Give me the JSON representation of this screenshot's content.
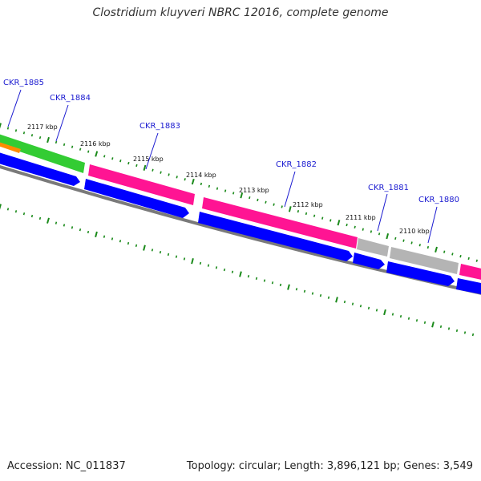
{
  "title": "Clostridium kluyveri NBRC 12016, complete genome",
  "footer": {
    "accession": "Accession: NC_011837",
    "summary": "Topology: circular; Length: 3,896,121 bp; Genes: 3,549"
  },
  "colors": {
    "tick": "#1a8a1a",
    "backbone": "#7a7a7a",
    "cds_forward_track": "#ff1493",
    "cds_reverse_track": "#0000ff",
    "gene_green": "#33cc33",
    "gene_orange": "#ff8c00",
    "gene_gray": "#b4b4b4",
    "gene_label": "#1a1ad0"
  },
  "kbp_labels": [
    "2117 kbp",
    "2116 kbp",
    "2115 kbp",
    "2114 kbp",
    "2113 kbp",
    "2112 kbp",
    "2111 kbp",
    "2110 kbp"
  ],
  "gene_labels": [
    "CKR_1885",
    "CKR_1884",
    "CKR_1883",
    "CKR_1882",
    "CKR_1881",
    "CKR_1880"
  ]
}
